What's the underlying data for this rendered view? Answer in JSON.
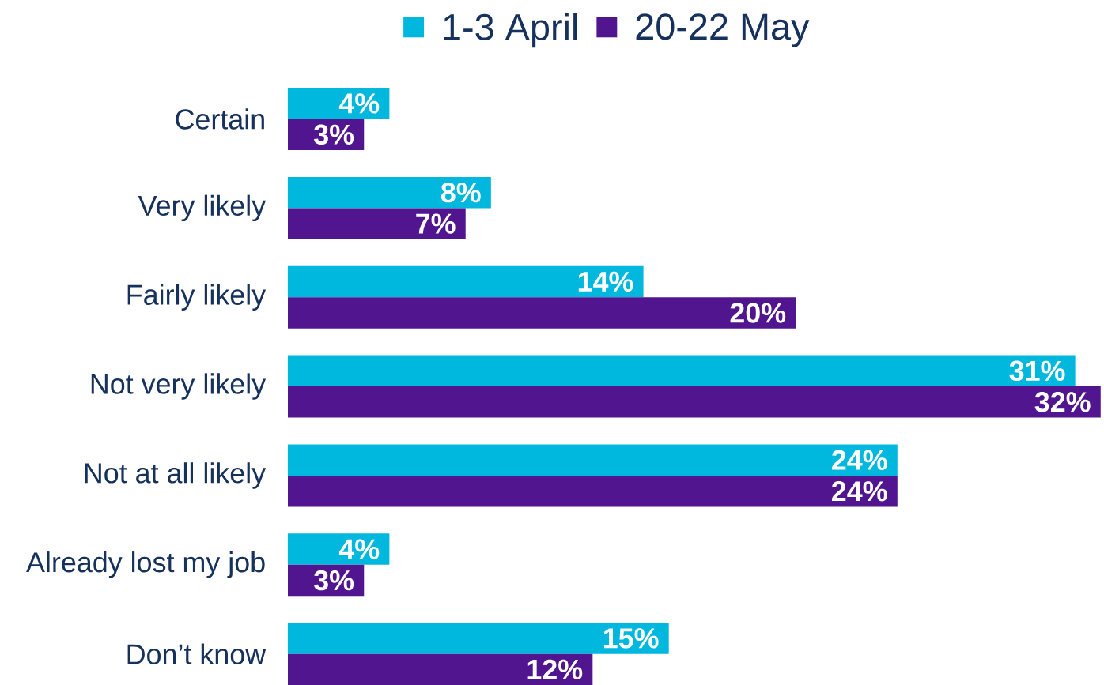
{
  "chart_data": {
    "type": "bar",
    "orientation": "horizontal",
    "legend": "top",
    "categories": [
      "Certain",
      "Very likely",
      "Fairly likely",
      "Not very likely",
      "Not at all likely",
      "Already lost my job",
      "Don’t know"
    ],
    "series": [
      {
        "name": "1-3 April",
        "color": "#00b8de",
        "values": [
          4,
          8,
          14,
          31,
          24,
          4,
          15
        ],
        "value_labels": [
          "4%",
          "8%",
          "14%",
          "31%",
          "24%",
          "4%",
          "15%"
        ]
      },
      {
        "name": "20-22 May",
        "color": "#51168f",
        "values": [
          3,
          7,
          20,
          32,
          24,
          3,
          12
        ],
        "value_labels": [
          "3%",
          "7%",
          "20%",
          "32%",
          "24%",
          "3%",
          "12%"
        ]
      }
    ]
  }
}
